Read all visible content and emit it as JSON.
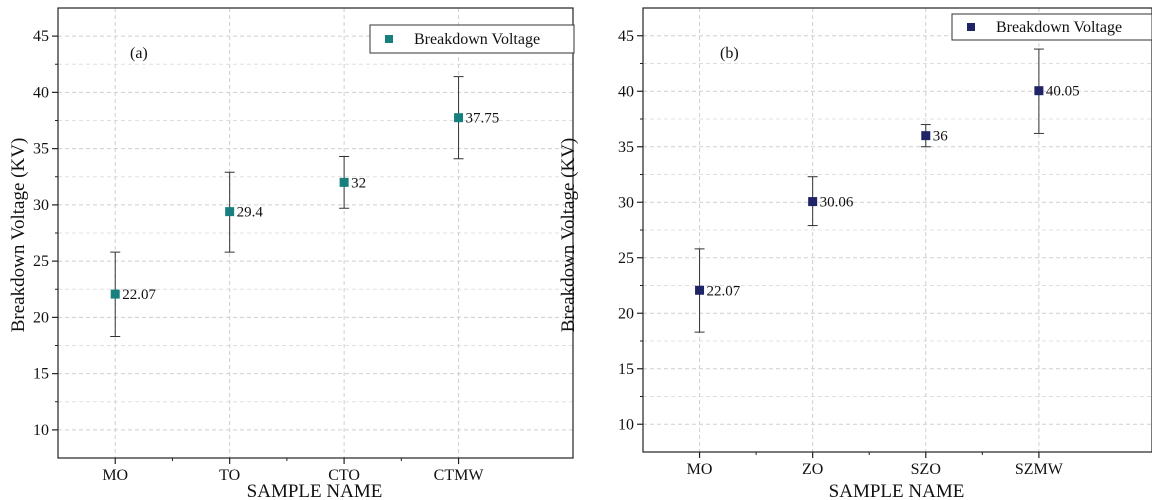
{
  "chart_data": [
    {
      "type": "scatter",
      "panel_label": "(a)",
      "xlabel": "SAMPLE NAME",
      "ylabel": "Breakdown Voltage (KV)",
      "categories": [
        "MO",
        "TO",
        "CTO",
        "CTMW"
      ],
      "series": [
        {
          "name": "Breakdown Voltage",
          "values": [
            22.07,
            29.4,
            32,
            37.75
          ],
          "error_low": [
            18.3,
            25.8,
            29.7,
            34.1
          ],
          "error_high": [
            25.8,
            32.9,
            34.3,
            41.4
          ],
          "labels": [
            "22.07",
            "29.4",
            "32",
            "37.75"
          ],
          "color": "#17807e"
        }
      ],
      "ylim": [
        7.5,
        47.5
      ],
      "yticks": [
        "10",
        "15",
        "20",
        "25",
        "30",
        "35",
        "40",
        "45"
      ],
      "grid": true,
      "legend_position": "top-right"
    },
    {
      "type": "scatter",
      "panel_label": "(b)",
      "xlabel": "SAMPLE NAME",
      "ylabel": "Breakdown Voltage (KV)",
      "categories": [
        "MO",
        "ZO",
        "SZO",
        "SZMW"
      ],
      "series": [
        {
          "name": "Breakdown Voltage",
          "values": [
            22.07,
            30.06,
            36,
            40.05
          ],
          "error_low": [
            18.3,
            27.9,
            35.0,
            36.2
          ],
          "error_high": [
            25.8,
            32.3,
            37.0,
            43.8
          ],
          "labels": [
            "22.07",
            "30.06",
            "36",
            "40.05"
          ],
          "color": "#1f2466"
        }
      ],
      "ylim": [
        7.5,
        47.5
      ],
      "yticks": [
        "10",
        "15",
        "20",
        "25",
        "30",
        "35",
        "40",
        "45"
      ],
      "grid": true,
      "legend_position": "top-right"
    }
  ]
}
